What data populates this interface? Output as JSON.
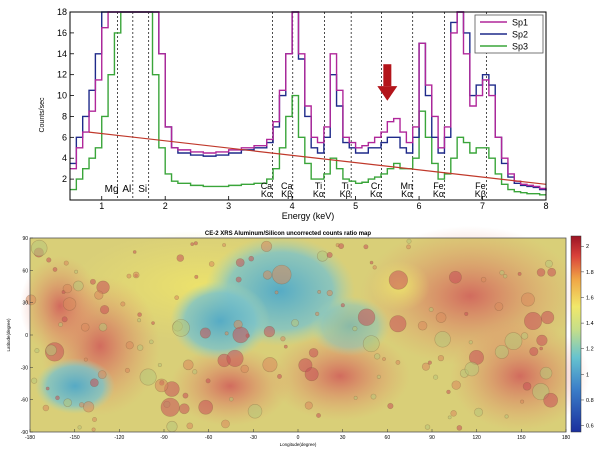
{
  "chart_data": [
    {
      "type": "line",
      "xlabel": "Energy (keV)",
      "ylabel": "Counts/sec",
      "xlim": [
        0.5,
        8
      ],
      "ylim": [
        0,
        18
      ],
      "xticks": [
        1,
        2,
        3,
        4,
        5,
        6,
        7,
        8
      ],
      "yticks": [
        2,
        4,
        6,
        8,
        10,
        12,
        14,
        16,
        18
      ],
      "grid": false,
      "legend_position": "top-right",
      "series": [
        {
          "name": "Sp1",
          "color": "#b0279a",
          "x": [
            0.5,
            0.6,
            0.7,
            0.8,
            0.9,
            1.0,
            1.1,
            1.2,
            1.3,
            1.4,
            1.5,
            1.6,
            1.7,
            1.8,
            1.9,
            2.0,
            2.1,
            2.2,
            2.4,
            2.6,
            2.8,
            3.0,
            3.2,
            3.4,
            3.6,
            3.7,
            3.8,
            3.9,
            4.0,
            4.1,
            4.2,
            4.3,
            4.4,
            4.5,
            4.6,
            4.7,
            4.8,
            4.9,
            5.0,
            5.1,
            5.2,
            5.3,
            5.4,
            5.5,
            5.6,
            5.7,
            5.8,
            5.9,
            6.0,
            6.1,
            6.2,
            6.3,
            6.4,
            6.5,
            6.6,
            6.7,
            6.8,
            6.9,
            7.0,
            7.1,
            7.2,
            7.3,
            7.4,
            7.5,
            7.6,
            7.7,
            7.8,
            7.9,
            8.0
          ],
          "y": [
            3.0,
            5.0,
            6.5,
            8.5,
            11.5,
            16.5,
            18.0,
            18.0,
            18.0,
            18.0,
            18.0,
            18.0,
            18.0,
            18.0,
            14.0,
            7.0,
            5.0,
            4.8,
            4.6,
            4.5,
            4.6,
            4.8,
            5.0,
            5.2,
            5.8,
            7.5,
            10.5,
            14.0,
            18.0,
            14.0,
            9.0,
            6.0,
            5.5,
            7.0,
            14.0,
            10.5,
            6.0,
            5.5,
            5.0,
            5.2,
            5.5,
            6.0,
            6.5,
            7.5,
            7.8,
            6.5,
            5.5,
            7.0,
            15.0,
            11.0,
            8.0,
            5.0,
            7.0,
            16.0,
            18.0,
            14.0,
            9.0,
            10.0,
            11.5,
            10.0,
            6.0,
            4.0,
            2.5,
            1.8,
            1.5,
            1.4,
            1.3,
            1.1,
            1.0
          ]
        },
        {
          "name": "Sp2",
          "color": "#1f2a8a",
          "x": [
            0.5,
            0.6,
            0.7,
            0.8,
            0.9,
            1.0,
            1.1,
            1.2,
            1.3,
            1.4,
            1.5,
            1.6,
            1.7,
            1.8,
            1.9,
            2.0,
            2.1,
            2.2,
            2.4,
            2.6,
            2.8,
            3.0,
            3.2,
            3.4,
            3.6,
            3.7,
            3.8,
            3.9,
            4.0,
            4.1,
            4.2,
            4.3,
            4.4,
            4.5,
            4.6,
            4.7,
            4.8,
            4.9,
            5.0,
            5.1,
            5.2,
            5.3,
            5.4,
            5.5,
            5.6,
            5.7,
            5.8,
            5.9,
            6.0,
            6.1,
            6.2,
            6.3,
            6.4,
            6.5,
            6.6,
            6.7,
            6.8,
            6.9,
            7.0,
            7.1,
            7.2,
            7.3,
            7.4,
            7.5,
            7.6,
            7.7,
            7.8,
            7.9,
            8.0
          ],
          "y": [
            3.5,
            6.0,
            8.0,
            10.5,
            14.0,
            18.0,
            18.0,
            18.0,
            18.0,
            18.0,
            18.0,
            18.0,
            18.0,
            18.0,
            14.0,
            7.0,
            5.0,
            4.5,
            4.3,
            4.2,
            4.3,
            4.5,
            4.8,
            5.0,
            5.5,
            7.0,
            10.0,
            14.0,
            18.0,
            13.5,
            8.0,
            5.0,
            4.5,
            6.0,
            12.0,
            9.0,
            5.5,
            5.0,
            4.5,
            4.5,
            5.0,
            5.0,
            5.5,
            6.0,
            6.0,
            5.0,
            4.5,
            6.0,
            15.0,
            10.0,
            6.0,
            4.5,
            6.0,
            17.0,
            18.0,
            16.0,
            10.0,
            11.0,
            12.0,
            11.0,
            6.0,
            3.5,
            2.2,
            1.6,
            1.4,
            1.3,
            1.2,
            1.0,
            0.9
          ]
        },
        {
          "name": "Sp3",
          "color": "#3aa53a",
          "x": [
            0.5,
            0.6,
            0.7,
            0.8,
            0.9,
            1.0,
            1.1,
            1.2,
            1.3,
            1.4,
            1.5,
            1.6,
            1.7,
            1.8,
            1.9,
            2.0,
            2.1,
            2.2,
            2.4,
            2.6,
            2.8,
            3.0,
            3.2,
            3.4,
            3.6,
            3.7,
            3.8,
            3.9,
            4.0,
            4.1,
            4.2,
            4.3,
            4.4,
            4.5,
            4.6,
            4.7,
            4.8,
            4.9,
            5.0,
            5.1,
            5.2,
            5.3,
            5.4,
            5.5,
            5.6,
            5.7,
            5.8,
            5.9,
            6.0,
            6.1,
            6.2,
            6.3,
            6.4,
            6.5,
            6.6,
            6.7,
            6.8,
            6.9,
            7.0,
            7.1,
            7.2,
            7.3,
            7.4,
            7.5,
            7.6,
            7.7,
            7.8,
            7.9,
            8.0
          ],
          "y": [
            1.0,
            2.0,
            3.0,
            4.0,
            5.0,
            8.0,
            12.0,
            16.0,
            18.0,
            18.0,
            18.0,
            18.0,
            18.0,
            12.0,
            5.0,
            2.5,
            1.8,
            1.6,
            1.4,
            1.3,
            1.3,
            1.4,
            1.5,
            1.6,
            2.0,
            3.0,
            5.0,
            8.0,
            10.0,
            6.0,
            3.5,
            2.0,
            2.0,
            2.5,
            4.0,
            3.0,
            2.0,
            1.8,
            1.6,
            1.7,
            2.0,
            2.2,
            2.5,
            3.0,
            3.5,
            3.0,
            3.0,
            4.0,
            8.5,
            6.0,
            3.5,
            2.0,
            2.5,
            4.0,
            6.0,
            5.5,
            4.5,
            5.0,
            5.0,
            4.0,
            2.5,
            1.5,
            1.0,
            0.8,
            0.7,
            0.6,
            0.6,
            0.5,
            0.5
          ]
        }
      ],
      "baseline": {
        "x": [
          0.8,
          8.0
        ],
        "y": [
          6.5,
          1.5
        ],
        "color": "#c0392b"
      },
      "element_lines": [
        {
          "label": "Mg",
          "energy": 1.25
        },
        {
          "label": "Al",
          "energy": 1.49
        },
        {
          "label": "Si",
          "energy": 1.74
        },
        {
          "label": "Ca Kα",
          "energy": 3.69
        },
        {
          "label": "Ca Kβ",
          "energy": 4.01
        },
        {
          "label": "Ti Kα",
          "energy": 4.51
        },
        {
          "label": "Ti Kβ",
          "energy": 4.93
        },
        {
          "label": "Cr Kα",
          "energy": 5.41
        },
        {
          "label": "Mn Kα",
          "energy": 5.9
        },
        {
          "label": "Fe Kα",
          "energy": 6.4
        },
        {
          "label": "Fe Kβ",
          "energy": 7.06
        }
      ],
      "arrow": {
        "x": 5.5,
        "y_top": 13.0,
        "y_bottom": 9.5,
        "color": "#b3151b"
      }
    },
    {
      "type": "heatmap",
      "title": "CE-2 XRS Aluminum/Silicon uncorrected counts ratio map",
      "xlabel": "Longitude(degree)",
      "ylabel": "Latitude(degree)",
      "xlim": [
        -180,
        180
      ],
      "ylim": [
        -90,
        90
      ],
      "xticks": [
        -180,
        -150,
        -120,
        -90,
        -60,
        -30,
        0,
        30,
        60,
        90,
        120,
        150,
        180
      ],
      "yticks": [
        90,
        60,
        30,
        0,
        -30,
        -60,
        -90
      ],
      "colorbar": {
        "min": 0.6,
        "max": 2,
        "ticks": [
          2,
          1.8,
          1.6,
          1.4,
          1.2,
          1,
          0.8,
          0.6
        ]
      }
    }
  ]
}
